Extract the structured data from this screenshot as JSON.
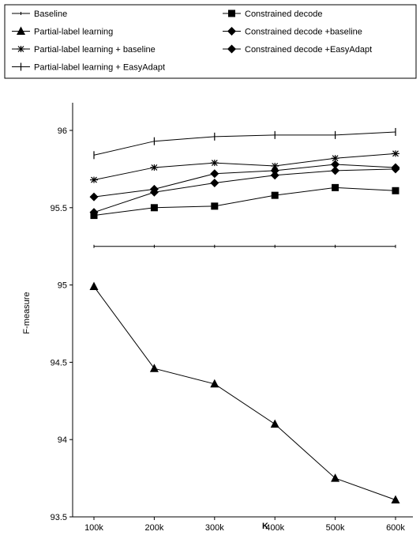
{
  "chart_data": {
    "type": "line",
    "title": "",
    "xlabel": "K",
    "ylabel": "F-measure",
    "categories": [
      "100k",
      "200k",
      "300k",
      "400k",
      "500k",
      "600k"
    ],
    "ylim": [
      93.5,
      96.2
    ],
    "yticks": [
      93.5,
      94,
      94.5,
      95,
      95.5,
      96
    ],
    "ytick_labels": [
      "93.5",
      "94",
      "94.5",
      "95",
      "95.5",
      "96"
    ],
    "grid": false,
    "legend_position": "top, outside plot area",
    "series": [
      {
        "name": "Baseline",
        "marker": "dash",
        "values": [
          95.25,
          95.25,
          95.25,
          95.25,
          95.25,
          95.25
        ]
      },
      {
        "name": "Partial-label learning",
        "marker": "triangle",
        "values": [
          94.99,
          94.46,
          94.36,
          94.1,
          93.75,
          93.61
        ]
      },
      {
        "name": "Partial-label learning + baseline",
        "marker": "asterisk",
        "values": [
          95.68,
          95.76,
          95.79,
          95.77,
          95.82,
          95.85
        ]
      },
      {
        "name": "Partial-label learning + EasyAdapt",
        "marker": "plus",
        "values": [
          95.84,
          95.93,
          95.96,
          95.97,
          95.97,
          95.99
        ]
      },
      {
        "name": "Constrained decode",
        "marker": "square",
        "values": [
          95.45,
          95.5,
          95.51,
          95.58,
          95.63,
          95.61
        ]
      },
      {
        "name": "Constrained decode +baseline",
        "marker": "diamond",
        "values": [
          95.57,
          95.62,
          95.72,
          95.74,
          95.78,
          95.76
        ]
      },
      {
        "name": "Constrained decode +EasyAdapt",
        "marker": "diamond",
        "values": [
          95.47,
          95.6,
          95.66,
          95.71,
          95.74,
          95.75
        ]
      }
    ]
  },
  "colors": {
    "line": "#000000",
    "background": "#ffffff"
  }
}
